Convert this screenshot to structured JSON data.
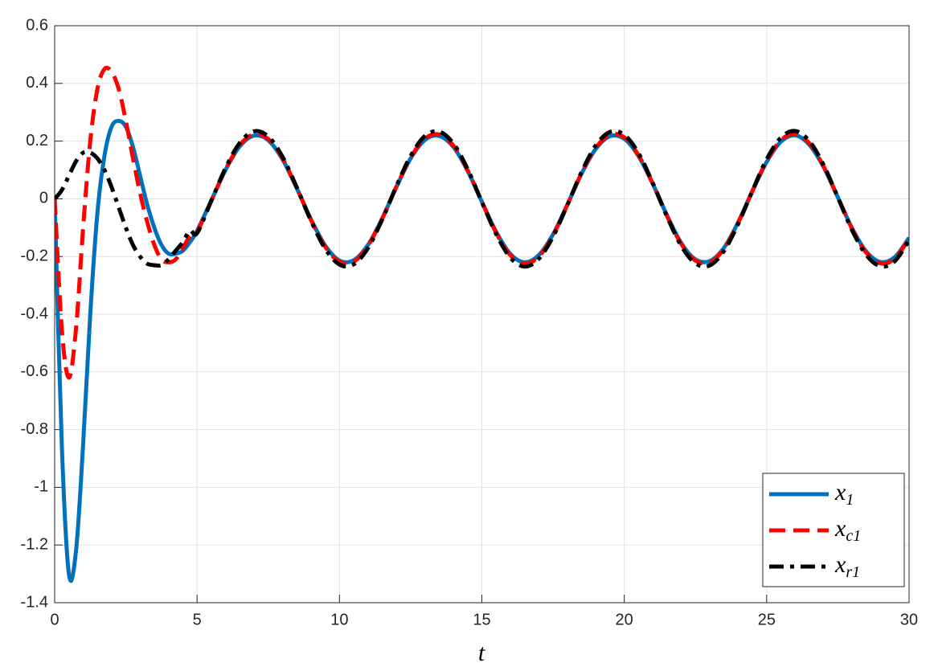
{
  "chart_data": {
    "type": "line",
    "xlabel": "t",
    "x": [
      0,
      0.25,
      0.5,
      0.75,
      1,
      1.25,
      1.5,
      1.75,
      2,
      2.25,
      2.5,
      2.75,
      3,
      3.25,
      3.5,
      3.75,
      4,
      4.25,
      4.5,
      4.75,
      5,
      5.5,
      6,
      6.5,
      7,
      7.5,
      8,
      8.5,
      9,
      9.5,
      10,
      10.5,
      11,
      11.5,
      12,
      12.5,
      13,
      13.5,
      14,
      14.5,
      15,
      15.5,
      16,
      16.5,
      17,
      17.5,
      18,
      18.5,
      19,
      19.5,
      20,
      20.5,
      21,
      21.5,
      22,
      22.5,
      23,
      23.5,
      24,
      24.5,
      25,
      25.5,
      26,
      26.5,
      27,
      27.5,
      28,
      28.5,
      29,
      29.5,
      30
    ],
    "series": [
      {
        "name": "x1",
        "color": "#0072bd",
        "linestyle": "solid",
        "values": [
          0,
          -0.85,
          -1.3,
          -1.22,
          -0.85,
          -0.4,
          -0.05,
          0.15,
          0.25,
          0.27,
          0.25,
          0.18,
          0.08,
          -0.02,
          -0.1,
          -0.16,
          -0.19,
          -0.19,
          -0.18,
          -0.15,
          -0.111,
          -0.006,
          0.1,
          0.182,
          0.219,
          0.203,
          0.137,
          0.037,
          -0.071,
          -0.162,
          -0.214,
          -0.213,
          -0.16,
          -0.068,
          0.041,
          0.14,
          0.204,
          0.218,
          0.18,
          0.097,
          -0.01,
          -0.114,
          -0.191,
          -0.22,
          -0.195,
          -0.123,
          -0.021,
          0.087,
          0.173,
          0.217,
          0.208,
          0.148,
          0.052,
          -0.057,
          -0.153,
          -0.21,
          -0.216,
          -0.17,
          -0.081,
          0.027,
          0.128,
          0.198,
          0.22,
          0.187,
          0.11,
          0.005,
          -0.102,
          -0.183,
          -0.219,
          -0.202,
          -0.135
        ]
      },
      {
        "name": "xc1",
        "color": "#ff0000",
        "linestyle": "dashed",
        "values": [
          0,
          -0.45,
          -0.62,
          -0.45,
          -0.1,
          0.2,
          0.38,
          0.45,
          0.44,
          0.38,
          0.27,
          0.14,
          0.02,
          -0.08,
          -0.16,
          -0.21,
          -0.22,
          -0.21,
          -0.17,
          -0.13,
          -0.114,
          -0.007,
          0.102,
          0.186,
          0.224,
          0.207,
          0.14,
          0.038,
          -0.073,
          -0.166,
          -0.218,
          -0.218,
          -0.163,
          -0.069,
          0.042,
          0.143,
          0.209,
          0.223,
          0.184,
          0.099,
          -0.01,
          -0.117,
          -0.195,
          -0.225,
          -0.2,
          -0.126,
          -0.021,
          0.089,
          0.177,
          0.222,
          0.213,
          0.151,
          0.053,
          -0.059,
          -0.156,
          -0.214,
          -0.221,
          -0.173,
          -0.083,
          0.027,
          0.131,
          0.203,
          0.225,
          0.192,
          0.112,
          0.005,
          -0.104,
          -0.187,
          -0.224,
          -0.207,
          -0.138
        ]
      },
      {
        "name": "xr1",
        "color": "#000000",
        "linestyle": "dashdot",
        "values": [
          0,
          0.03,
          0.08,
          0.13,
          0.16,
          0.16,
          0.14,
          0.1,
          0.04,
          -0.03,
          -0.1,
          -0.16,
          -0.2,
          -0.225,
          -0.23,
          -0.23,
          -0.21,
          -0.18,
          -0.15,
          -0.11,
          -0.119,
          -0.007,
          0.107,
          0.194,
          0.234,
          0.216,
          0.146,
          0.04,
          -0.076,
          -0.173,
          -0.228,
          -0.227,
          -0.171,
          -0.072,
          0.044,
          0.149,
          0.218,
          0.233,
          0.192,
          0.103,
          -0.011,
          -0.122,
          -0.204,
          -0.235,
          -0.208,
          -0.131,
          -0.022,
          0.093,
          0.185,
          0.232,
          0.222,
          0.158,
          0.055,
          -0.061,
          -0.163,
          -0.224,
          -0.231,
          -0.181,
          -0.087,
          0.028,
          0.137,
          0.212,
          0.235,
          0.2,
          0.117,
          0.005,
          -0.109,
          -0.195,
          -0.234,
          -0.216,
          -0.144
        ]
      }
    ],
    "xlim": [
      0,
      30
    ],
    "xticks": [
      0,
      5,
      10,
      15,
      20,
      25,
      30
    ],
    "ylim": [
      -1.4,
      0.6
    ],
    "yticks": [
      -1.4,
      -1.2,
      -1,
      -0.8,
      -0.6,
      -0.4,
      -0.2,
      0,
      0.2,
      0.4,
      0.6
    ],
    "grid": true,
    "legend": "lower right"
  }
}
